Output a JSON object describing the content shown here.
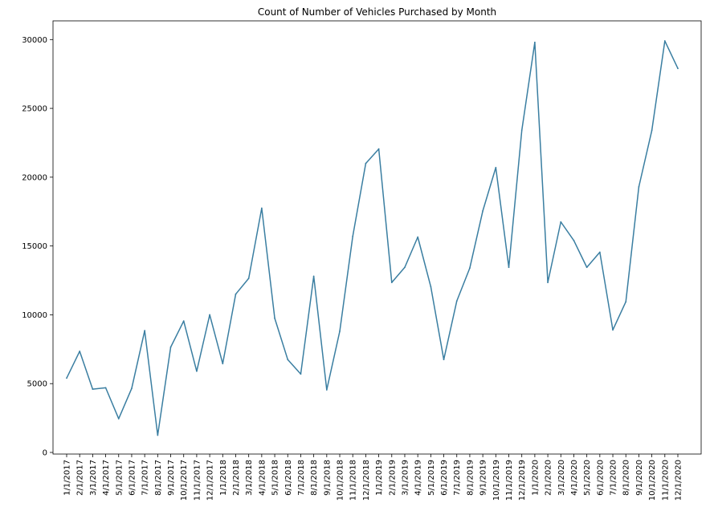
{
  "chart_data": {
    "type": "line",
    "title": "Count of Number of Vehicles Purchased by Month",
    "xlabel": "",
    "ylabel": "",
    "ylim": [
      0,
      31300
    ],
    "yticks": [
      0,
      5000,
      10000,
      15000,
      20000,
      25000,
      30000
    ],
    "grid": false,
    "legend": "none",
    "line_color": "#3a7ea1",
    "categories": [
      "1/1/2017",
      "2/1/2017",
      "3/1/2017",
      "4/1/2017",
      "5/1/2017",
      "6/1/2017",
      "7/1/2017",
      "8/1/2017",
      "9/1/2017",
      "10/1/2017",
      "11/1/2017",
      "12/1/2017",
      "1/1/2018",
      "2/1/2018",
      "3/1/2018",
      "4/1/2018",
      "5/1/2018",
      "6/1/2018",
      "7/1/2018",
      "8/1/2018",
      "9/1/2018",
      "10/1/2018",
      "11/1/2018",
      "12/1/2018",
      "1/1/2019",
      "2/1/2019",
      "3/1/2019",
      "4/1/2019",
      "5/1/2019",
      "6/1/2019",
      "7/1/2019",
      "8/1/2019",
      "9/1/2019",
      "10/1/2019",
      "11/1/2019",
      "12/1/2019",
      "1/1/2020",
      "2/1/2020",
      "3/1/2020",
      "4/1/2020",
      "5/1/2020",
      "6/1/2020",
      "7/1/2020",
      "8/1/2020",
      "9/1/2020",
      "10/1/2020",
      "11/1/2020",
      "12/1/2020"
    ],
    "series": [
      {
        "values": [
          5400,
          7350,
          4600,
          4700,
          2450,
          4650,
          8850,
          1250,
          7650,
          9550,
          5900,
          10000,
          6450,
          11500,
          12650,
          17750,
          9750,
          6750,
          5700,
          12800,
          4550,
          8800,
          15700,
          21000,
          22050,
          12350,
          13450,
          15650,
          12050,
          6750,
          11000,
          13400,
          17550,
          20700,
          13450,
          23400,
          29800,
          12350,
          16750,
          15400,
          13450,
          14550,
          8900,
          10950,
          19300,
          23400,
          29900,
          27900
        ]
      }
    ]
  }
}
